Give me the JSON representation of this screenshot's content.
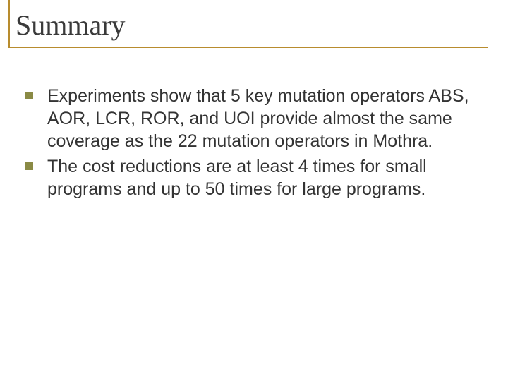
{
  "colors": {
    "title_border": "#b88c2e",
    "title_text": "#3a3a3a",
    "bullet_marker": "#8a8a45",
    "body_text": "#333333",
    "background": "#ffffff"
  },
  "typography": {
    "title_font": "Times New Roman",
    "title_size_pt": 30,
    "body_font": "Arial",
    "body_size_pt": 19
  },
  "title": "Summary",
  "bullets": [
    "Experiments show that 5 key mutation operators ABS, AOR, LCR, ROR, and UOI provide almost the same coverage as the 22 mutation operators in Mothra.",
    "The cost reductions are at least 4 times for small programs and up to 50 times for large programs."
  ]
}
